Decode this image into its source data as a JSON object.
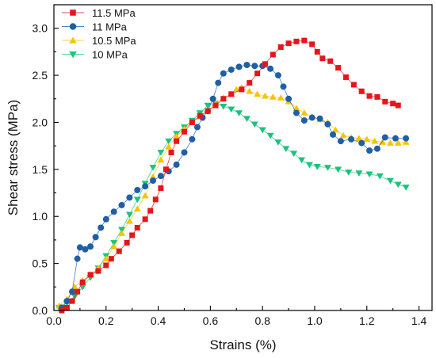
{
  "chart_data": {
    "type": "scatter",
    "xlabel": "Strains (%)",
    "ylabel": "Shear stress (MPa)",
    "xlim": [
      0.0,
      1.45
    ],
    "ylim": [
      0.0,
      3.25
    ],
    "xticks": [
      "0.0",
      "0.2",
      "0.4",
      "0.6",
      "0.8",
      "1.0",
      "1.2",
      "1.4"
    ],
    "yticks": [
      "0.0",
      "0.5",
      "1.0",
      "1.5",
      "2.0",
      "2.5",
      "3.0"
    ],
    "xtick_values": [
      0.0,
      0.2,
      0.4,
      0.6,
      0.8,
      1.0,
      1.2,
      1.4
    ],
    "ytick_values": [
      0.0,
      0.5,
      1.0,
      1.5,
      2.0,
      2.5,
      3.0
    ],
    "grid": false,
    "legend_position": "top-left",
    "series": [
      {
        "name": "11.5 MPa",
        "color": "#e8141c",
        "marker": "square",
        "points": [
          [
            0.03,
            0.0
          ],
          [
            0.05,
            0.03
          ],
          [
            0.07,
            0.1
          ],
          [
            0.09,
            0.2
          ],
          [
            0.11,
            0.3
          ],
          [
            0.14,
            0.38
          ],
          [
            0.17,
            0.42
          ],
          [
            0.2,
            0.48
          ],
          [
            0.22,
            0.55
          ],
          [
            0.25,
            0.63
          ],
          [
            0.28,
            0.72
          ],
          [
            0.3,
            0.8
          ],
          [
            0.32,
            0.88
          ],
          [
            0.35,
            0.97
          ],
          [
            0.37,
            1.06
          ],
          [
            0.39,
            1.18
          ],
          [
            0.41,
            1.3
          ],
          [
            0.43,
            1.5
          ],
          [
            0.45,
            1.68
          ],
          [
            0.47,
            1.8
          ],
          [
            0.5,
            1.9
          ],
          [
            0.53,
            2.0
          ],
          [
            0.56,
            2.07
          ],
          [
            0.59,
            2.12
          ],
          [
            0.62,
            2.18
          ],
          [
            0.65,
            2.25
          ],
          [
            0.68,
            2.3
          ],
          [
            0.72,
            2.35
          ],
          [
            0.75,
            2.42
          ],
          [
            0.78,
            2.52
          ],
          [
            0.81,
            2.62
          ],
          [
            0.84,
            2.72
          ],
          [
            0.87,
            2.8
          ],
          [
            0.9,
            2.84
          ],
          [
            0.93,
            2.86
          ],
          [
            0.96,
            2.87
          ],
          [
            0.99,
            2.83
          ],
          [
            1.01,
            2.75
          ],
          [
            1.03,
            2.68
          ],
          [
            1.06,
            2.65
          ],
          [
            1.09,
            2.58
          ],
          [
            1.12,
            2.48
          ],
          [
            1.15,
            2.4
          ],
          [
            1.18,
            2.33
          ],
          [
            1.21,
            2.28
          ],
          [
            1.24,
            2.27
          ],
          [
            1.27,
            2.22
          ],
          [
            1.3,
            2.2
          ],
          [
            1.32,
            2.18
          ]
        ]
      },
      {
        "name": "11 MPa",
        "color": "#1f5fa6",
        "marker": "circle",
        "points": [
          [
            0.03,
            0.03
          ],
          [
            0.05,
            0.1
          ],
          [
            0.07,
            0.2
          ],
          [
            0.09,
            0.55
          ],
          [
            0.1,
            0.67
          ],
          [
            0.12,
            0.65
          ],
          [
            0.14,
            0.68
          ],
          [
            0.16,
            0.78
          ],
          [
            0.18,
            0.88
          ],
          [
            0.2,
            0.97
          ],
          [
            0.23,
            1.05
          ],
          [
            0.26,
            1.12
          ],
          [
            0.29,
            1.2
          ],
          [
            0.32,
            1.28
          ],
          [
            0.35,
            1.32
          ],
          [
            0.38,
            1.38
          ],
          [
            0.41,
            1.43
          ],
          [
            0.44,
            1.48
          ],
          [
            0.47,
            1.55
          ],
          [
            0.5,
            1.68
          ],
          [
            0.53,
            1.82
          ],
          [
            0.55,
            1.95
          ],
          [
            0.57,
            2.05
          ],
          [
            0.59,
            2.12
          ],
          [
            0.61,
            2.25
          ],
          [
            0.63,
            2.42
          ],
          [
            0.65,
            2.52
          ],
          [
            0.68,
            2.56
          ],
          [
            0.71,
            2.59
          ],
          [
            0.74,
            2.61
          ],
          [
            0.77,
            2.6
          ],
          [
            0.8,
            2.6
          ],
          [
            0.83,
            2.57
          ],
          [
            0.86,
            2.5
          ],
          [
            0.88,
            2.38
          ],
          [
            0.9,
            2.25
          ],
          [
            0.93,
            2.1
          ],
          [
            0.96,
            2.02
          ],
          [
            0.99,
            2.05
          ],
          [
            1.02,
            2.04
          ],
          [
            1.05,
            1.98
          ],
          [
            1.07,
            1.87
          ],
          [
            1.1,
            1.8
          ],
          [
            1.14,
            1.82
          ],
          [
            1.18,
            1.78
          ],
          [
            1.21,
            1.7
          ],
          [
            1.24,
            1.72
          ],
          [
            1.27,
            1.84
          ],
          [
            1.31,
            1.83
          ],
          [
            1.35,
            1.83
          ]
        ]
      },
      {
        "name": "10.5 MPa",
        "color": "#f5c400",
        "marker": "triangle-up",
        "points": [
          [
            0.02,
            0.05
          ],
          [
            0.05,
            0.12
          ],
          [
            0.08,
            0.25
          ],
          [
            0.11,
            0.32
          ],
          [
            0.14,
            0.38
          ],
          [
            0.17,
            0.45
          ],
          [
            0.2,
            0.55
          ],
          [
            0.23,
            0.68
          ],
          [
            0.26,
            0.82
          ],
          [
            0.29,
            0.95
          ],
          [
            0.32,
            1.08
          ],
          [
            0.35,
            1.22
          ],
          [
            0.38,
            1.42
          ],
          [
            0.41,
            1.6
          ],
          [
            0.44,
            1.74
          ],
          [
            0.47,
            1.85
          ],
          [
            0.5,
            1.93
          ],
          [
            0.53,
            2.0
          ],
          [
            0.56,
            2.06
          ],
          [
            0.59,
            2.12
          ],
          [
            0.62,
            2.2
          ],
          [
            0.65,
            2.26
          ],
          [
            0.68,
            2.3
          ],
          [
            0.7,
            2.35
          ],
          [
            0.72,
            2.37
          ],
          [
            0.75,
            2.33
          ],
          [
            0.78,
            2.3
          ],
          [
            0.81,
            2.28
          ],
          [
            0.84,
            2.27
          ],
          [
            0.87,
            2.26
          ],
          [
            0.9,
            2.22
          ],
          [
            0.93,
            2.15
          ],
          [
            0.96,
            2.1
          ],
          [
            0.99,
            2.06
          ],
          [
            1.02,
            2.03
          ],
          [
            1.05,
            2.0
          ],
          [
            1.08,
            1.92
          ],
          [
            1.11,
            1.86
          ],
          [
            1.14,
            1.84
          ],
          [
            1.17,
            1.83
          ],
          [
            1.2,
            1.82
          ],
          [
            1.23,
            1.8
          ],
          [
            1.26,
            1.79
          ],
          [
            1.29,
            1.78
          ],
          [
            1.32,
            1.78
          ],
          [
            1.35,
            1.79
          ]
        ]
      },
      {
        "name": "10 MPa",
        "color": "#18c47a",
        "marker": "triangle-down",
        "points": [
          [
            0.02,
            0.03
          ],
          [
            0.05,
            0.08
          ],
          [
            0.08,
            0.15
          ],
          [
            0.11,
            0.25
          ],
          [
            0.14,
            0.35
          ],
          [
            0.17,
            0.45
          ],
          [
            0.2,
            0.58
          ],
          [
            0.23,
            0.72
          ],
          [
            0.26,
            0.86
          ],
          [
            0.29,
            1.02
          ],
          [
            0.32,
            1.18
          ],
          [
            0.35,
            1.35
          ],
          [
            0.38,
            1.52
          ],
          [
            0.41,
            1.68
          ],
          [
            0.44,
            1.8
          ],
          [
            0.47,
            1.88
          ],
          [
            0.5,
            1.95
          ],
          [
            0.53,
            2.02
          ],
          [
            0.56,
            2.1
          ],
          [
            0.59,
            2.18
          ],
          [
            0.62,
            2.2
          ],
          [
            0.65,
            2.17
          ],
          [
            0.68,
            2.14
          ],
          [
            0.71,
            2.1
          ],
          [
            0.74,
            2.04
          ],
          [
            0.77,
            1.98
          ],
          [
            0.8,
            1.92
          ],
          [
            0.83,
            1.86
          ],
          [
            0.86,
            1.79
          ],
          [
            0.89,
            1.72
          ],
          [
            0.92,
            1.67
          ],
          [
            0.95,
            1.6
          ],
          [
            0.98,
            1.55
          ],
          [
            1.01,
            1.53
          ],
          [
            1.05,
            1.52
          ],
          [
            1.09,
            1.5
          ],
          [
            1.13,
            1.47
          ],
          [
            1.17,
            1.46
          ],
          [
            1.21,
            1.45
          ],
          [
            1.25,
            1.43
          ],
          [
            1.29,
            1.38
          ],
          [
            1.32,
            1.34
          ],
          [
            1.35,
            1.31
          ]
        ]
      }
    ]
  }
}
